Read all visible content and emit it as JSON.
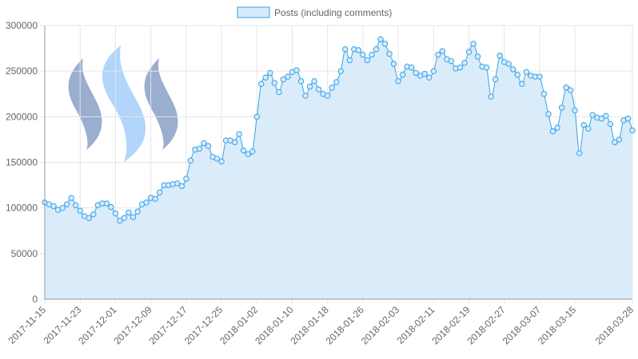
{
  "chart_data": {
    "type": "area",
    "legend": {
      "label": "Posts (including comments)",
      "position": "top-center"
    },
    "colors": {
      "line": "#36a2eb",
      "fill": "#d6eaf9",
      "grid": "#e5e5e5",
      "axis": "#999999",
      "text": "#666666"
    },
    "logo": {
      "name": "steem-logo-icon",
      "colors": [
        "#9aaed0",
        "#b1d5fb"
      ]
    },
    "grid": true,
    "start_date": "2017-11-15",
    "ylim": [
      0,
      300000
    ],
    "y_ticks": [
      "0",
      "50000",
      "100000",
      "150000",
      "200000",
      "250000",
      "300000"
    ],
    "x_ticks": [
      "2017-11-15",
      "2017-11-23",
      "2017-12-01",
      "2017-12-09",
      "2017-12-17",
      "2017-12-25",
      "2018-01-02",
      "2018-01-10",
      "2018-01-18",
      "2018-01-26",
      "2018-02-03",
      "2018-02-11",
      "2018-02-19",
      "2018-02-27",
      "2018-03-07",
      "2018-03-15",
      "2018-03-28"
    ],
    "values": [
      106000,
      104000,
      102000,
      98000,
      100000,
      104000,
      111000,
      103000,
      97000,
      91000,
      89000,
      93000,
      103000,
      105000,
      105000,
      101000,
      94000,
      86000,
      89000,
      95000,
      90000,
      96000,
      104000,
      106000,
      111000,
      110000,
      117000,
      125000,
      125000,
      126000,
      127000,
      124000,
      132000,
      152000,
      164000,
      165000,
      171000,
      168000,
      156000,
      154000,
      151000,
      174000,
      174000,
      172000,
      181000,
      163000,
      159000,
      162000,
      200000,
      236000,
      243000,
      248000,
      237000,
      227000,
      241000,
      244000,
      249000,
      251000,
      239000,
      223000,
      233000,
      239000,
      230000,
      225000,
      223000,
      232000,
      238000,
      250000,
      274000,
      262000,
      274000,
      273000,
      268000,
      262000,
      268000,
      274000,
      285000,
      280000,
      269000,
      258000,
      239000,
      246000,
      255000,
      254000,
      248000,
      245000,
      247000,
      243000,
      250000,
      268000,
      272000,
      263000,
      261000,
      253000,
      254000,
      259000,
      271000,
      280000,
      266000,
      255000,
      254000,
      222000,
      241000,
      267000,
      260000,
      258000,
      252000,
      246000,
      236000,
      249000,
      245000,
      244000,
      244000,
      225000,
      203000,
      184000,
      188000,
      210000,
      232000,
      229000,
      207000,
      160000,
      191000,
      187000,
      202000,
      199000,
      198000,
      201000,
      192000,
      172000,
      175000,
      196000,
      198000,
      185000
    ]
  }
}
